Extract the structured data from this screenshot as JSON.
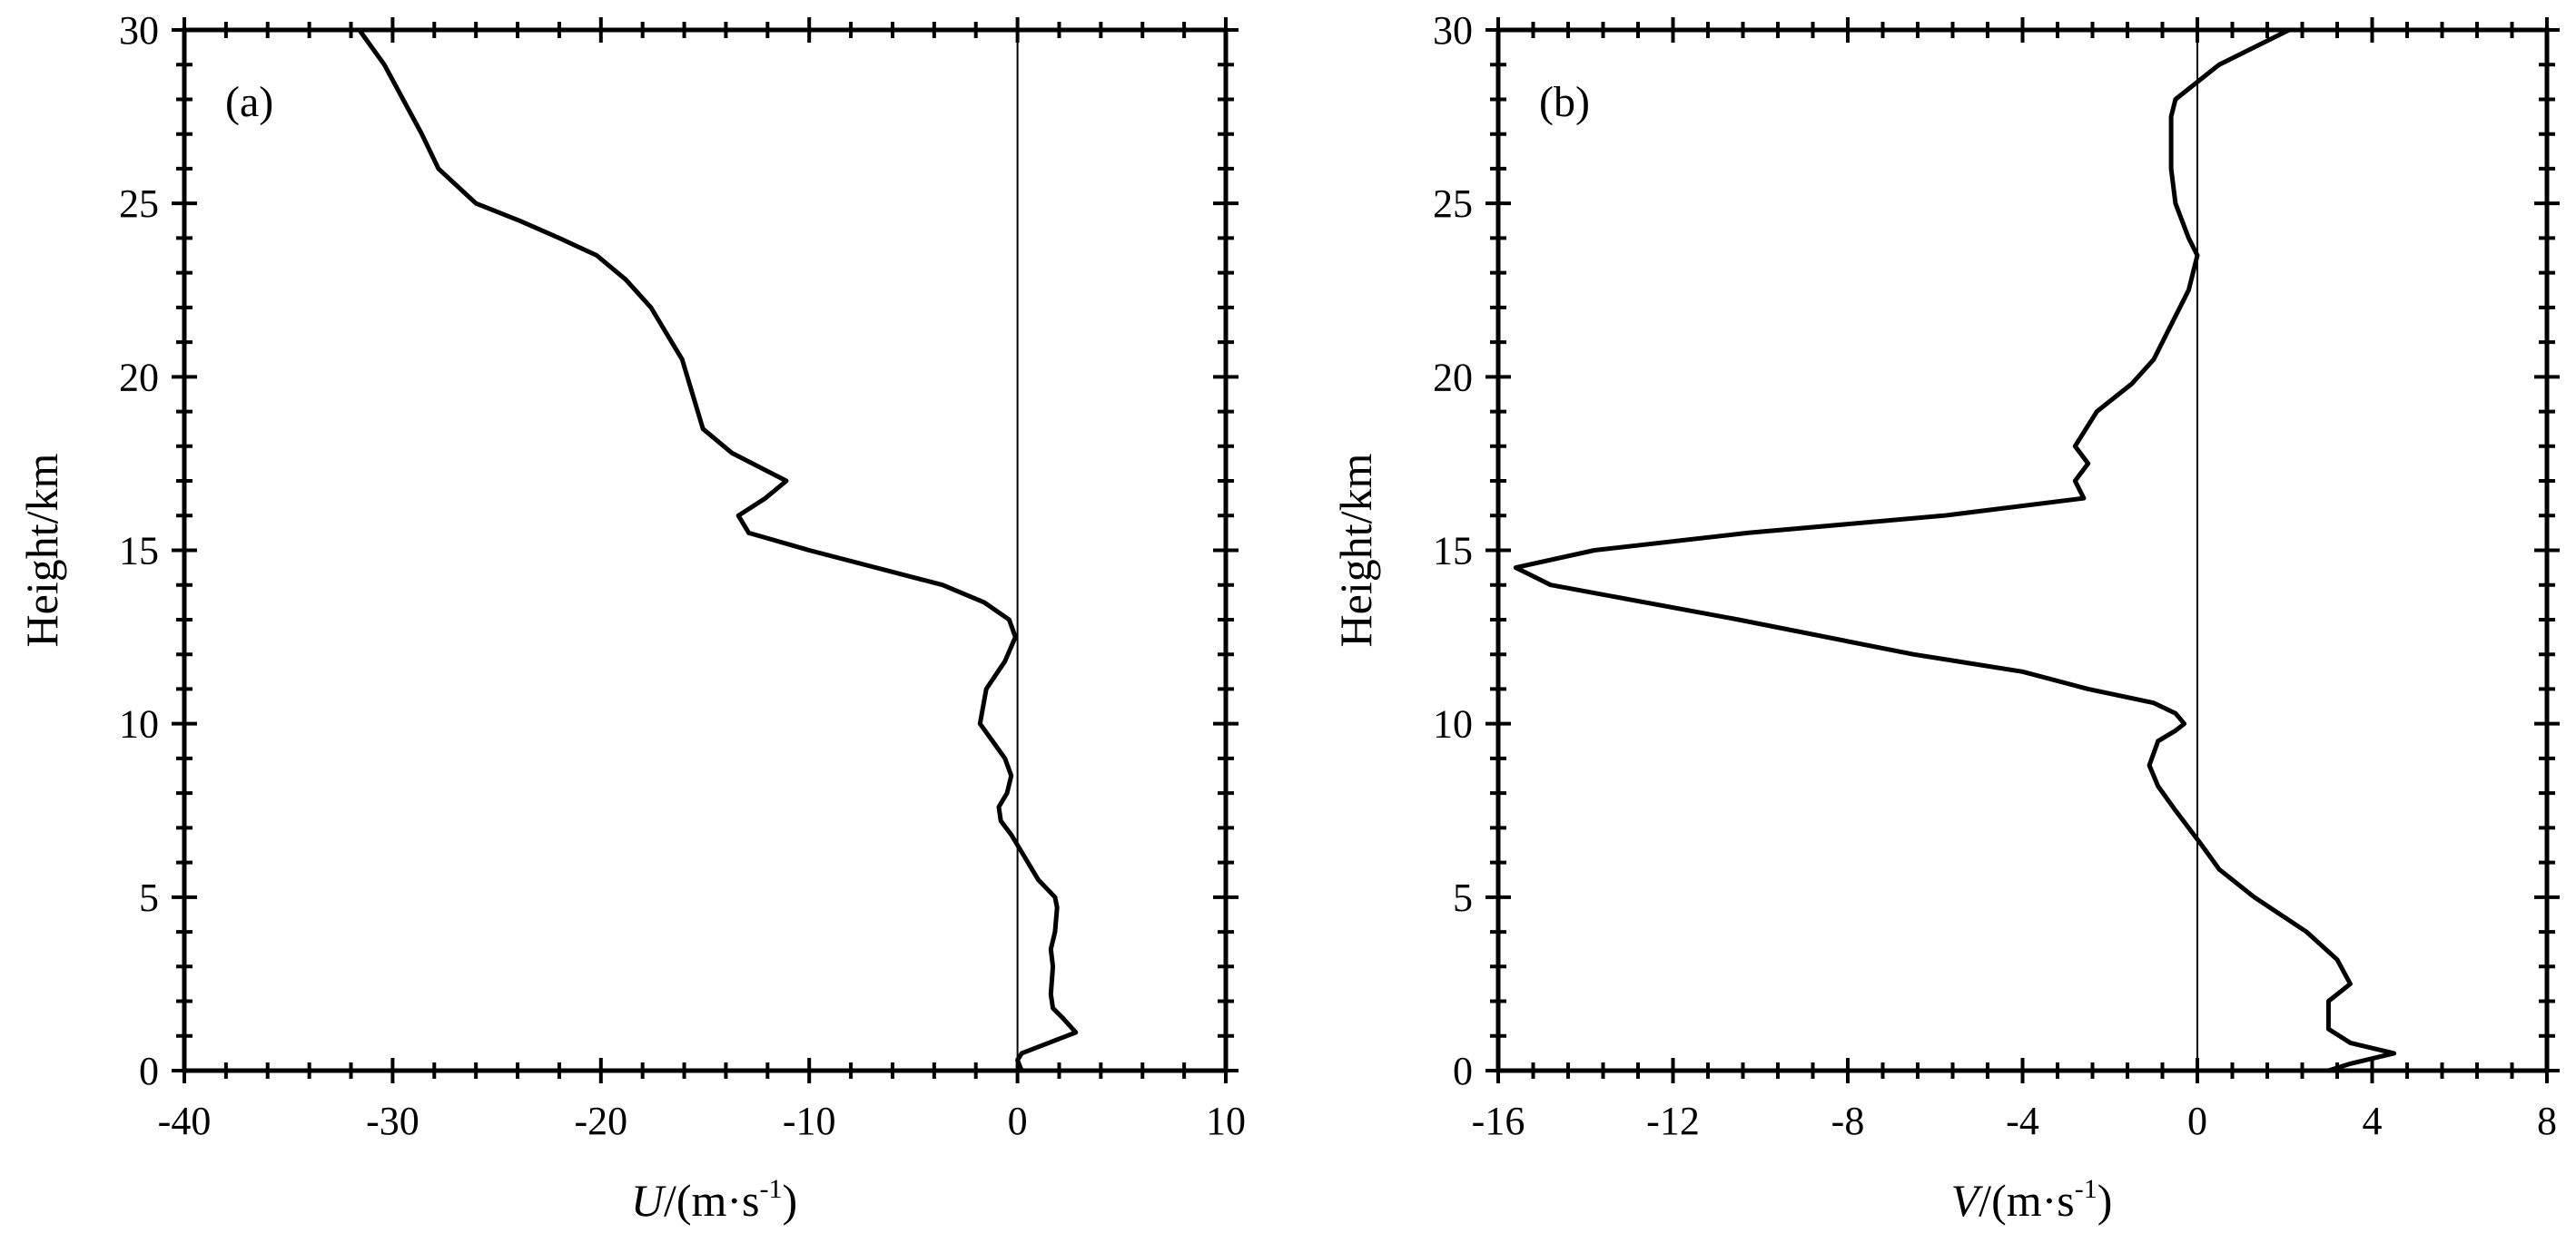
{
  "chart_data": [
    {
      "type": "line",
      "panel_label": "(a)",
      "ylabel": "Height/km",
      "xlabel": {
        "var": "U",
        "unit_pre": "/(m·s",
        "unit_exp": "-1",
        "unit_post": ")"
      },
      "xlim": [
        -40,
        10
      ],
      "ylim": [
        0,
        30
      ],
      "xticks": [
        -40,
        -30,
        -20,
        -10,
        0,
        10
      ],
      "yticks": [
        0,
        5,
        10,
        15,
        20,
        25,
        30
      ],
      "zero_line": true,
      "grid": false,
      "series": [
        {
          "x": [
            0.2,
            0,
            0.2,
            1.5,
            2.8,
            2.2,
            1.7,
            1.6,
            1.7,
            1.6,
            1.8,
            1.9,
            1.8,
            1.0,
            0.2,
            -0.3,
            -0.8,
            -0.9,
            -0.5,
            -0.3,
            -0.6,
            -1.2,
            -1.8,
            -1.5,
            -0.6,
            -0.1,
            -0.4,
            -1.6,
            -3.6,
            -10,
            -12.9,
            -13.4,
            -12.1,
            -11.1,
            -13.7,
            -15.1,
            -15.6,
            -16.1,
            -16.8,
            -17.6,
            -18.8,
            -20.2,
            -22.0,
            -23.9,
            -26.0,
            -27.8,
            -28.6,
            -30.4,
            -31.6
          ],
          "y": [
            0,
            0.3,
            0.5,
            0.8,
            1.1,
            1.5,
            1.8,
            2.2,
            3.0,
            3.5,
            4.0,
            4.7,
            5.0,
            5.5,
            6.3,
            6.8,
            7.2,
            7.6,
            8.0,
            8.5,
            9.0,
            9.5,
            10.0,
            11.0,
            11.8,
            12.5,
            13.0,
            13.5,
            14.0,
            15.0,
            15.5,
            16.0,
            16.5,
            17.0,
            17.8,
            18.5,
            19.5,
            20.5,
            21.2,
            22.0,
            22.8,
            23.5,
            24.0,
            24.5,
            25.0,
            26.0,
            27.0,
            29.0,
            30.0
          ]
        }
      ]
    },
    {
      "type": "line",
      "panel_label": "(b)",
      "ylabel": "Height/km",
      "xlabel": {
        "var": "V",
        "unit_pre": "/(m·s",
        "unit_exp": "-1",
        "unit_post": ")"
      },
      "xlim": [
        -16,
        8
      ],
      "ylim": [
        0,
        30
      ],
      "xticks": [
        -16,
        -12,
        -8,
        -4,
        0,
        4,
        8
      ],
      "yticks": [
        0,
        5,
        10,
        15,
        20,
        25,
        30
      ],
      "zero_line": true,
      "grid": false,
      "series": [
        {
          "x": [
            3.0,
            3.5,
            4.5,
            3.5,
            3.0,
            3.0,
            3.5,
            3.2,
            2.5,
            1.3,
            0.5,
            0.1,
            -0.2,
            -0.5,
            -0.9,
            -1.1,
            -0.9,
            -0.5,
            -0.3,
            -0.5,
            -1.0,
            -2.5,
            -4.0,
            -6.5,
            -10.5,
            -14.8,
            -15.6,
            -13.8,
            -10.3,
            -5.8,
            -2.6,
            -2.8,
            -2.5,
            -2.8,
            -2.3,
            -1.5,
            -1.0,
            -0.6,
            -0.2,
            0,
            -0.2,
            -0.5,
            -0.6,
            -0.6,
            -0.6,
            -0.5,
            0.1,
            0.5,
            2.1
          ],
          "y": [
            0,
            0.2,
            0.5,
            0.8,
            1.2,
            2.0,
            2.5,
            3.2,
            4.0,
            5.0,
            5.8,
            6.5,
            7.0,
            7.5,
            8.2,
            8.8,
            9.5,
            9.8,
            10.0,
            10.3,
            10.6,
            11.0,
            11.5,
            12.0,
            13.0,
            14.0,
            14.5,
            15.0,
            15.5,
            16.0,
            16.5,
            17.0,
            17.5,
            18.0,
            19.0,
            19.8,
            20.5,
            21.5,
            22.5,
            23.5,
            24.0,
            25.0,
            26.0,
            27.0,
            27.5,
            28.0,
            28.6,
            29.0,
            30.0
          ]
        }
      ]
    }
  ]
}
